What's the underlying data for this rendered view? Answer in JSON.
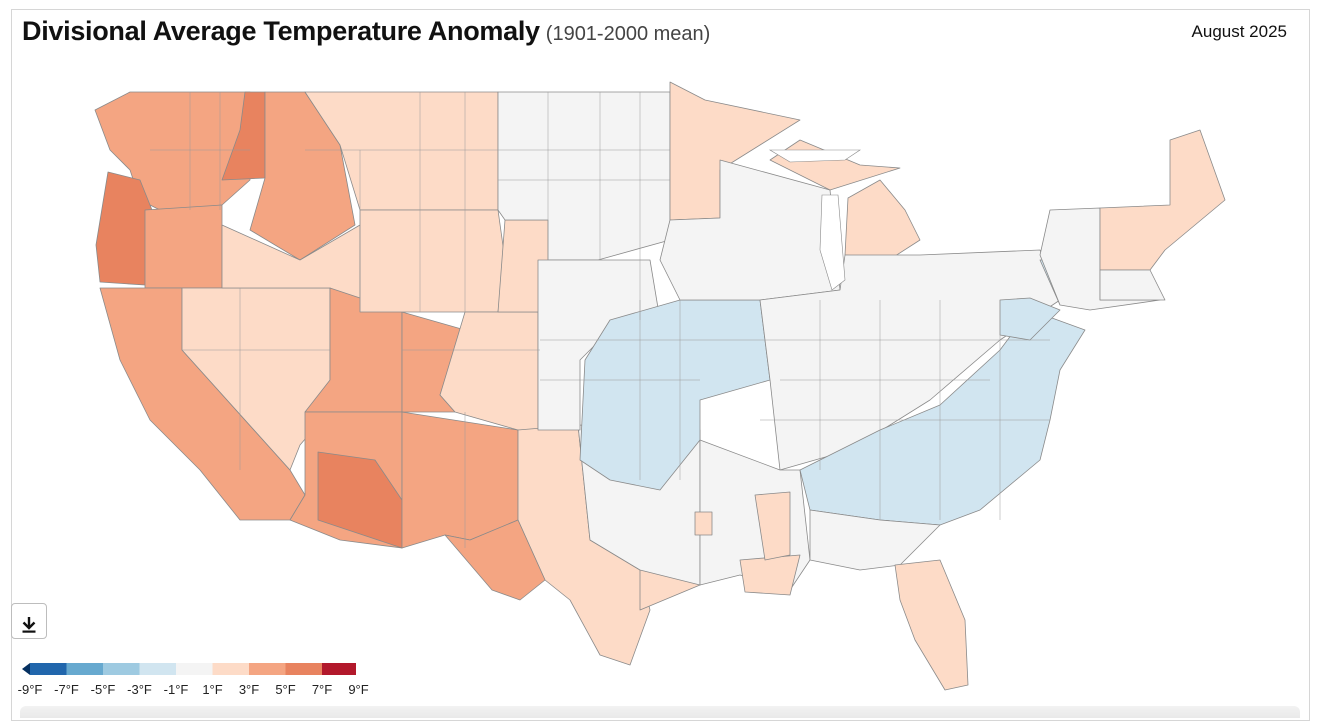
{
  "header": {
    "title": "Divisional Average Temperature Anomaly",
    "subtitle": "(1901-2000 mean)",
    "period": "August 2025"
  },
  "download": {
    "icon": "download-icon"
  },
  "legend": {
    "labels": [
      "-9°F",
      "-7°F",
      "-5°F",
      "-3°F",
      "-1°F",
      "1°F",
      "3°F",
      "5°F",
      "7°F",
      "9°F"
    ],
    "colors": [
      "#2166ac",
      "#67a9cf",
      "#9ecae1",
      "#d1e5f0",
      "#f4f4f4",
      "#fddbc7",
      "#f4a582",
      "#e8835f",
      "#b2182b"
    ],
    "end_low_color": "#053061",
    "end_high_color": "#67001f"
  }
}
